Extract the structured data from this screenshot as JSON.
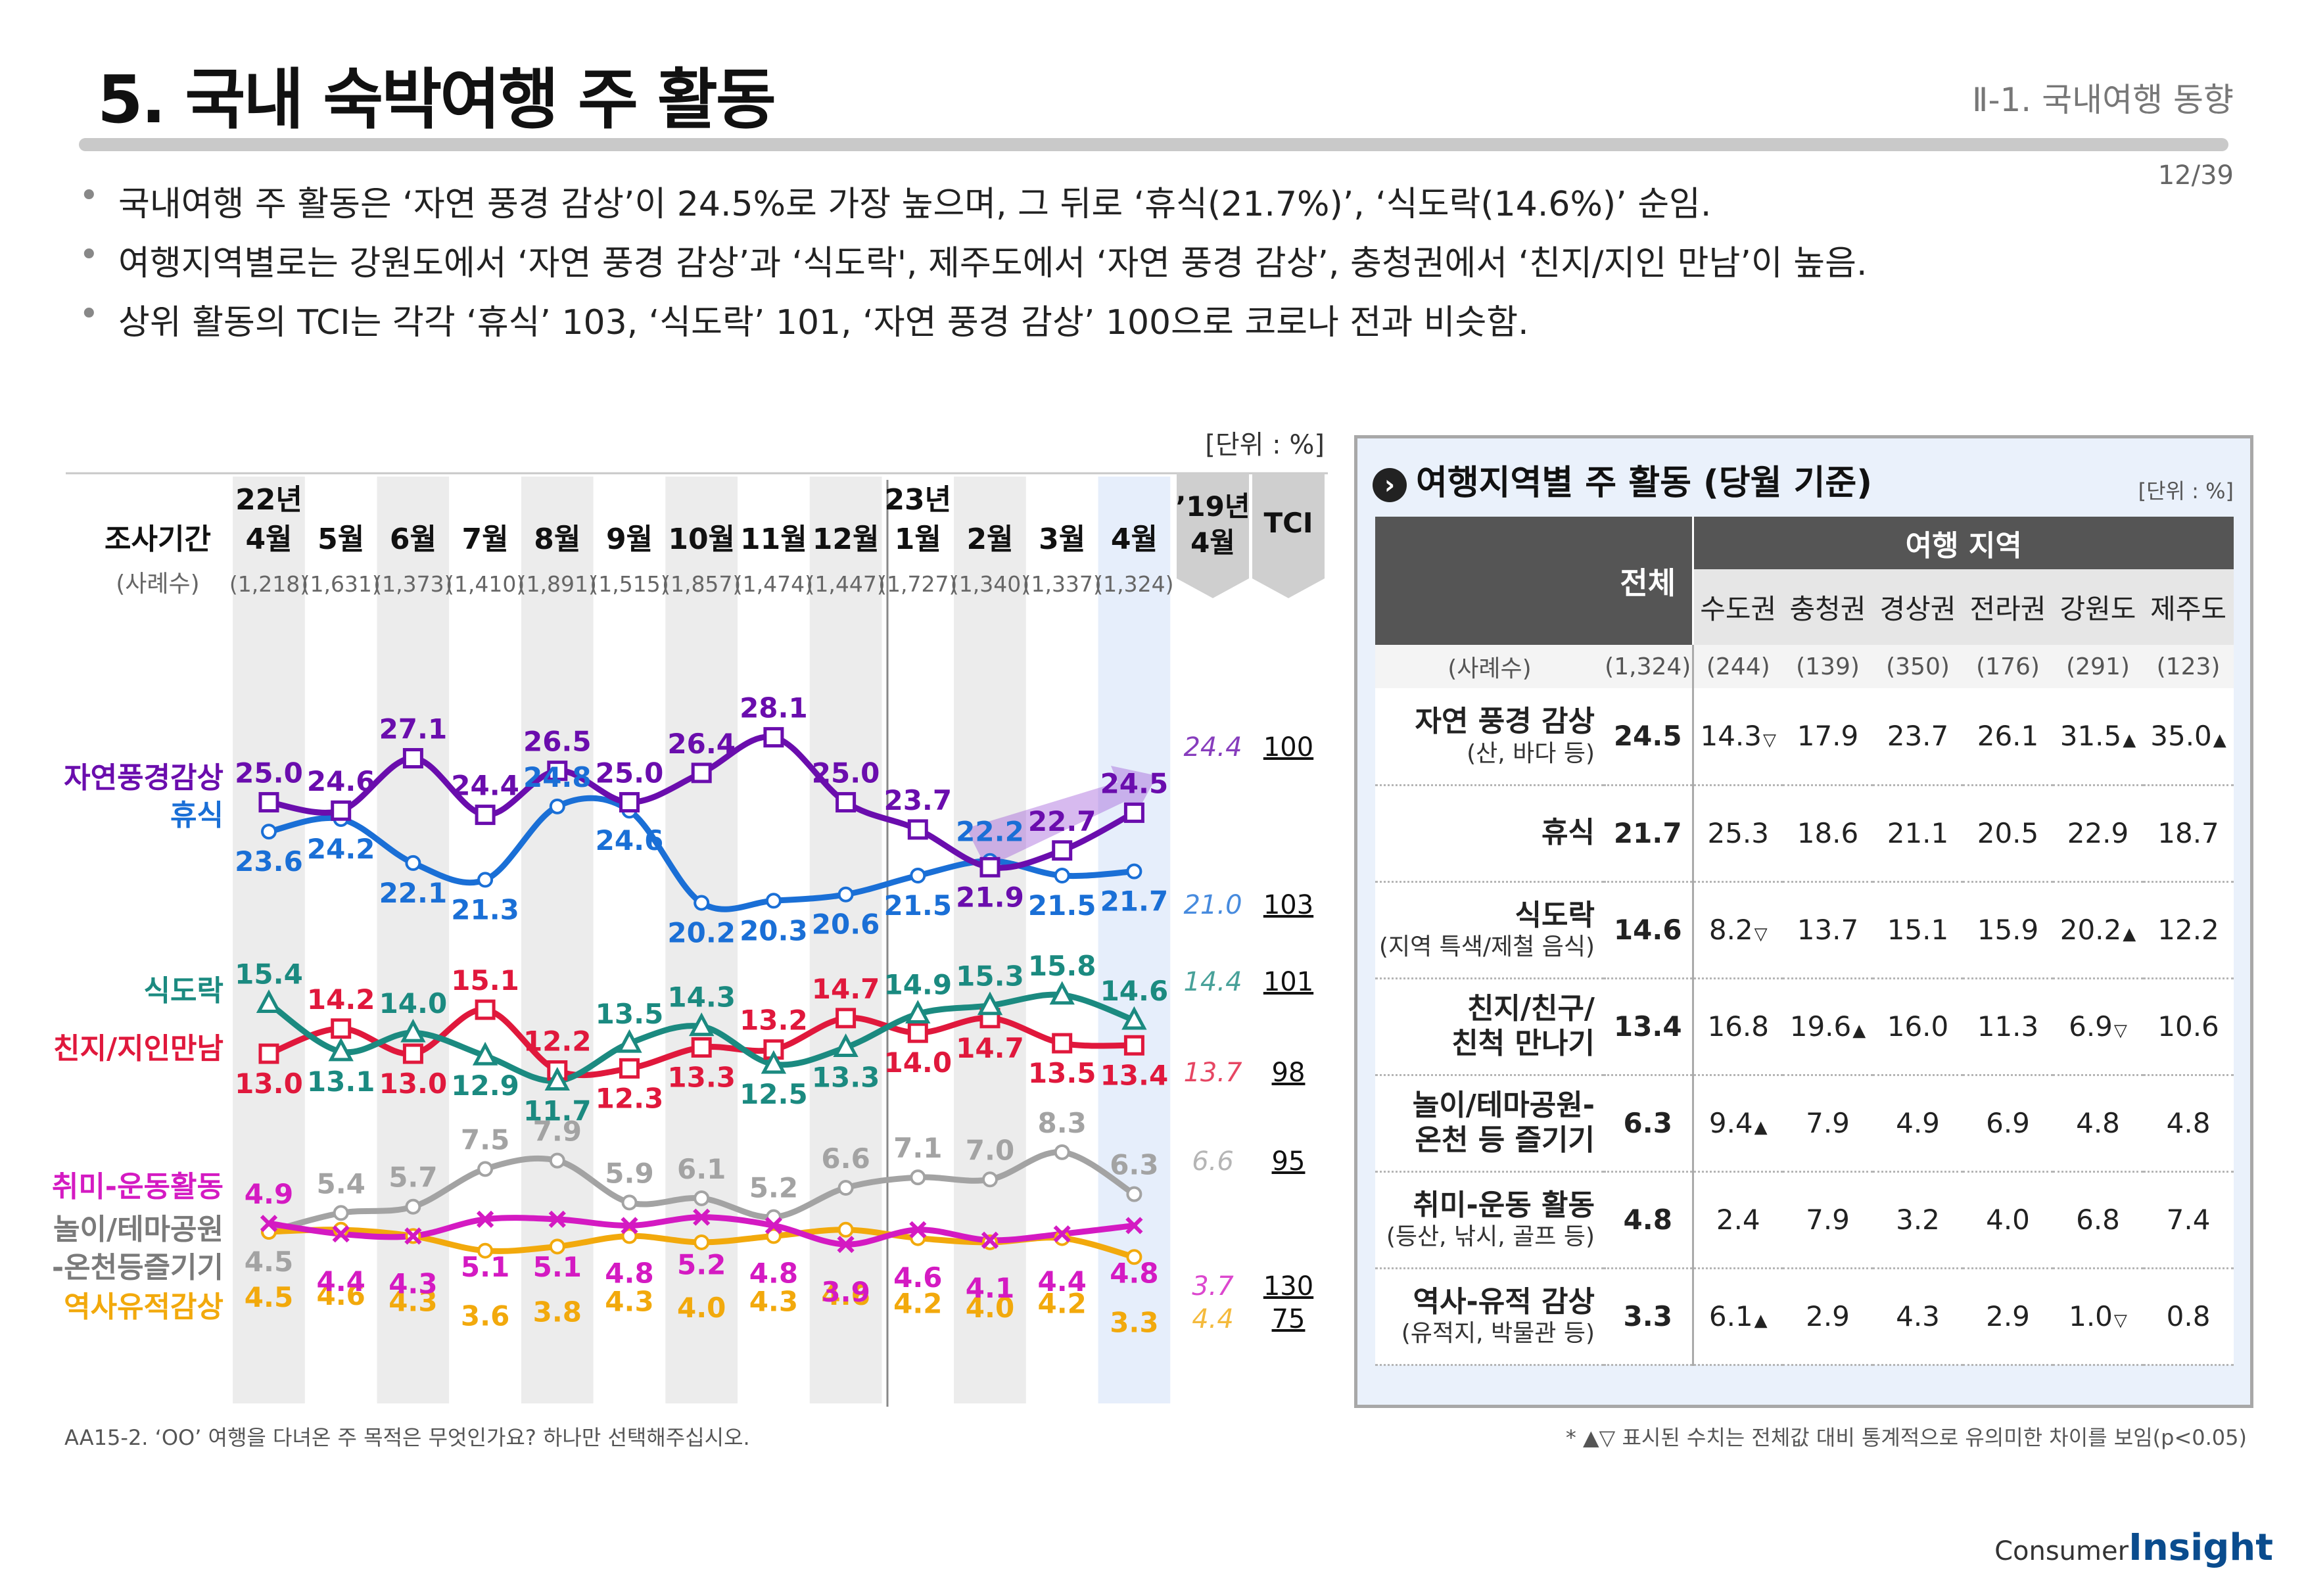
{
  "header": {
    "title": "5. 국내 숙박여행 주 활동",
    "section": "Ⅱ-1. 국내여행 동향",
    "page": "12/39"
  },
  "bullets": [
    "국내여행 주 활동은 ‘자연 풍경 감상’이 24.5%로 가장 높으며, 그 뒤로 ‘휴식(21.7%)’, ‘식도락(14.6%)’ 순임.",
    "여행지역별로는 강원도에서 ‘자연 풍경 감상’과 ‘식도락', 제주도에서 ‘자연 풍경 감상’, 충청권에서 ‘친지/지인 만남’이 높음.",
    "상위 활동의 TCI는 각각 ‘휴식’ 103, ‘식도락’ 101, ‘자연 풍경 감상’ 100으로 코로나 전과 비슷함."
  ],
  "chart_data": {
    "type": "line",
    "unit_label": "[단위 : %]",
    "period_header": "조사기간",
    "sample_header": "(사례수)",
    "year_labels": [
      {
        "label": "22년",
        "at": "4월"
      },
      {
        "label": "23년",
        "at": "1월"
      }
    ],
    "categories": [
      "4월",
      "5월",
      "6월",
      "7월",
      "8월",
      "9월",
      "10월",
      "11월",
      "12월",
      "1월",
      "2월",
      "3월",
      "4월"
    ],
    "sample_sizes": [
      "(1,218)",
      "(1,631)",
      "(1,373)",
      "(1,410)",
      "(1,891)",
      "(1,515)",
      "(1,857)",
      "(1,474)",
      "(1,447)",
      "(1,727)",
      "(1,340)",
      "(1,337)",
      "(1,324)"
    ],
    "comparison_header": [
      "’19년",
      "4월"
    ],
    "tci_header": "TCI",
    "ylim": [
      0,
      30
    ],
    "series": [
      {
        "name": "자연풍경감상",
        "color": "#6a0dad",
        "marker": "square",
        "values": [
          25.0,
          24.6,
          27.1,
          24.4,
          26.5,
          25.0,
          26.4,
          28.1,
          25.0,
          23.7,
          21.9,
          22.7,
          24.5
        ],
        "v2019": "24.4",
        "tci": "100"
      },
      {
        "name": "휴식",
        "color": "#1a6fd6",
        "marker": "none",
        "values": [
          23.6,
          24.2,
          22.1,
          21.3,
          24.8,
          24.6,
          20.2,
          20.3,
          20.6,
          21.5,
          22.2,
          21.5,
          21.7
        ],
        "v2019": "21.0",
        "tci": "103"
      },
      {
        "name": "식도락",
        "color": "#1b8a80",
        "marker": "triangle",
        "values": [
          15.4,
          13.1,
          14.0,
          12.9,
          11.7,
          13.5,
          14.3,
          12.5,
          13.3,
          14.9,
          15.3,
          15.8,
          14.6
        ],
        "v2019": "14.4",
        "tci": "101"
      },
      {
        "name": "친지/지인만남",
        "color": "#e0183c",
        "marker": "square",
        "values": [
          13.0,
          14.2,
          13.0,
          15.1,
          12.2,
          12.3,
          13.3,
          13.2,
          14.7,
          14.0,
          14.7,
          13.5,
          13.4
        ],
        "v2019": "13.7",
        "tci": "98"
      },
      {
        "name": "놀이/테마공원-온천등즐기기",
        "color": "#a3a3a3",
        "marker": "none",
        "values": [
          4.5,
          5.4,
          5.7,
          7.5,
          7.9,
          5.9,
          6.1,
          5.2,
          6.6,
          7.1,
          7.0,
          8.3,
          6.3
        ],
        "v2019": "6.6",
        "tci": "95"
      },
      {
        "name": "취미-운동활동",
        "color": "#d41ac2",
        "marker": "x",
        "values": [
          4.9,
          4.4,
          4.3,
          5.1,
          5.1,
          4.8,
          5.2,
          4.8,
          3.9,
          4.6,
          4.1,
          4.4,
          4.8
        ],
        "v2019": "3.7",
        "tci": "130"
      },
      {
        "name": "역사유적감상",
        "color": "#f2a90c",
        "marker": "none",
        "values": [
          4.5,
          4.6,
          4.3,
          3.6,
          3.8,
          4.3,
          4.0,
          4.3,
          4.6,
          4.2,
          4.0,
          4.2,
          3.3
        ],
        "v2019": "4.4",
        "tci": "75"
      }
    ],
    "legend_labels": {
      "nature": "자연풍경감상",
      "rest": "휴식",
      "food": "식도락",
      "family": "친지/지인만남",
      "hobby": "취미-운동활동",
      "theme1": "놀이/테마공원",
      "theme2": "-온천등즐기기",
      "history": "역사유적감상"
    }
  },
  "table": {
    "title": "여행지역별 주 활동 (당월 기준)",
    "unit": "[단위 : %]",
    "total_header": "전체",
    "region_header": "여행 지역",
    "regions": [
      "수도권",
      "충청권",
      "경상권",
      "전라권",
      "강원도",
      "제주도"
    ],
    "count_label": "(사례수)",
    "counts": [
      "(1,324)",
      "(244)",
      "(139)",
      "(350)",
      "(176)",
      "(291)",
      "(123)"
    ],
    "rows": [
      {
        "label": "자연 풍경 감상",
        "sub": "(산, 바다 등)",
        "total": "24.5",
        "cells": [
          "14.3",
          "17.9",
          "23.7",
          "26.1",
          "31.5",
          "35.0"
        ],
        "marks": [
          "▽",
          "",
          "",
          "",
          "▲",
          "▲"
        ]
      },
      {
        "label": "휴식",
        "sub": "",
        "total": "21.7",
        "cells": [
          "25.3",
          "18.6",
          "21.1",
          "20.5",
          "22.9",
          "18.7"
        ],
        "marks": [
          "",
          "",
          "",
          "",
          "",
          ""
        ]
      },
      {
        "label": "식도락",
        "sub": "(지역 특색/제철 음식)",
        "total": "14.6",
        "cells": [
          "8.2",
          "13.7",
          "15.1",
          "15.9",
          "20.2",
          "12.2"
        ],
        "marks": [
          "▽",
          "",
          "",
          "",
          "▲",
          ""
        ]
      },
      {
        "label": "친지/친구/",
        "label2": "친척 만나기",
        "sub": "",
        "total": "13.4",
        "cells": [
          "16.8",
          "19.6",
          "16.0",
          "11.3",
          "6.9",
          "10.6"
        ],
        "marks": [
          "",
          "▲",
          "",
          "",
          "▽",
          ""
        ]
      },
      {
        "label": "놀이/테마공원-",
        "label2": "온천 등 즐기기",
        "sub": "",
        "total": "6.3",
        "cells": [
          "9.4",
          "7.9",
          "4.9",
          "6.9",
          "4.8",
          "4.8"
        ],
        "marks": [
          "▲",
          "",
          "",
          "",
          "",
          ""
        ]
      },
      {
        "label": "취미-운동 활동",
        "sub": "(등산, 낚시, 골프 등)",
        "total": "4.8",
        "cells": [
          "2.4",
          "7.9",
          "3.2",
          "4.0",
          "6.8",
          "7.4"
        ],
        "marks": [
          "",
          "",
          "",
          "",
          "",
          ""
        ]
      },
      {
        "label": "역사-유적 감상",
        "sub": "(유적지, 박물관 등)",
        "total": "3.3",
        "cells": [
          "6.1",
          "2.9",
          "4.3",
          "2.9",
          "1.0",
          "0.8"
        ],
        "marks": [
          "▲",
          "",
          "",
          "",
          "▽",
          ""
        ]
      }
    ]
  },
  "footnotes": {
    "question": "AA15-2. ‘OO’ 여행을 다녀온 주 목적은 무엇인가요? 하나만 선택해주십시오.",
    "significance": "* ▲▽ 표시된 수치는 전체값 대비 통계적으로 유의미한 차이를 보임(p<0.05)"
  },
  "brand": {
    "prefix": "Consumer",
    "name": "Insight"
  }
}
